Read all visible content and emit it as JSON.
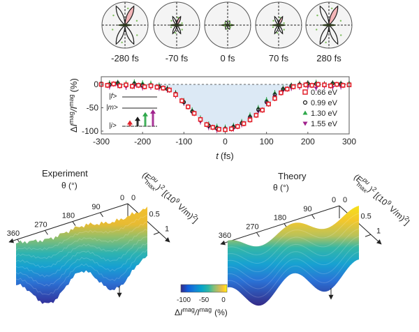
{
  "chart_data": [
    {
      "id": "polar_panels",
      "type": "polar",
      "description": "Polar plots of magnetic signal vs polarization angle at selected pump-probe delays",
      "panels": [
        {
          "label": "-280 fs",
          "lobe_major": 1.0,
          "lobe_minor": 0.95,
          "tilt_deg": 25,
          "shaded_lobe": 1.0
        },
        {
          "label": "-70 fs",
          "lobe_major": 0.45,
          "lobe_minor": 0.45,
          "tilt_deg": 25,
          "shaded_lobe": 0.45
        },
        {
          "label": "0 fs",
          "lobe_major": 0.22,
          "lobe_minor": 0.22,
          "tilt_deg": 25,
          "shaded_lobe": 0.0
        },
        {
          "label": "70 fs",
          "lobe_major": 0.45,
          "lobe_minor": 0.45,
          "tilt_deg": 25,
          "shaded_lobe": 0.45
        },
        {
          "label": "280 fs",
          "lobe_major": 1.0,
          "lobe_minor": 0.95,
          "tilt_deg": 25,
          "shaded_lobe": 1.0
        }
      ],
      "colors": {
        "outline": "#1a1a1a",
        "shade": "#f4b6b9",
        "data_points": "#7fbf5f",
        "frame_fill": "#f4f4f4"
      }
    },
    {
      "id": "time_trace",
      "type": "scatter",
      "title": "",
      "xlabel": "t (fs)",
      "ylabel": "ΔI mag / I mag (%)",
      "ylabel_parts": {
        "prefix": "Δ",
        "i1": "I",
        "sup1": "mag",
        "sep": "/",
        "i2": "I",
        "sup2": "mag",
        "unit": "(%)"
      },
      "xlim": [
        -300,
        300
      ],
      "ylim": [
        -105,
        8
      ],
      "xticks": [
        -300,
        -200,
        -100,
        0,
        100,
        200,
        300
      ],
      "yticks": [
        0,
        -50,
        -100
      ],
      "grid": false,
      "baseline": 0,
      "shaded_region": {
        "from": -300,
        "to": 300,
        "fill": "#dce9f5",
        "description": "area between baseline 0 and dip"
      },
      "legend_placement": "bottom-right",
      "series": [
        {
          "name": "0.66 eV",
          "marker": "square",
          "color": "#e2212b",
          "x": [
            -300,
            -285,
            -270,
            -255,
            -240,
            -225,
            -210,
            -195,
            -180,
            -165,
            -150,
            -135,
            -120,
            -105,
            -90,
            -75,
            -60,
            -45,
            -30,
            -15,
            0,
            15,
            30,
            45,
            60,
            75,
            90,
            105,
            120,
            135,
            150,
            165,
            180,
            195,
            210,
            225,
            240,
            255,
            270,
            285,
            300
          ],
          "y": [
            0,
            -2,
            1,
            -3,
            -1,
            -4,
            -2,
            -5,
            -3,
            -6,
            -8,
            -12,
            -22,
            -35,
            -48,
            -62,
            -75,
            -86,
            -92,
            -96,
            -97,
            -95,
            -90,
            -84,
            -76,
            -66,
            -55,
            -42,
            -30,
            -18,
            -10,
            -5,
            -3,
            -1,
            -2,
            0,
            -1,
            -3,
            0,
            -2,
            -1
          ]
        },
        {
          "name": "0.99 eV",
          "marker": "circle",
          "color": "#1a1a1a",
          "x": [
            -300,
            -280,
            -260,
            -240,
            -220,
            -200,
            -180,
            -160,
            -140,
            -120,
            -100,
            -80,
            -60,
            -40,
            -20,
            0,
            20,
            40,
            60,
            80,
            100,
            120,
            140,
            160,
            180,
            200,
            220,
            240,
            260,
            280,
            300
          ],
          "y": [
            2,
            0,
            3,
            -1,
            1,
            -2,
            -3,
            -5,
            -10,
            -20,
            -38,
            -58,
            -76,
            -88,
            -94,
            -95,
            -91,
            -83,
            -70,
            -54,
            -38,
            -22,
            -10,
            -3,
            0,
            2,
            1,
            0,
            2,
            1,
            0
          ]
        },
        {
          "name": "1.30 eV",
          "marker": "triangle-up",
          "color": "#2ea84a",
          "x": [
            -300,
            -280,
            -260,
            -240,
            -220,
            -200,
            -180,
            -160,
            -140,
            -120,
            -100,
            -80,
            -60,
            -40,
            -20,
            0,
            20,
            40,
            60,
            80,
            100,
            120,
            140,
            160,
            180,
            200,
            220,
            240,
            260,
            280,
            300
          ],
          "y": [
            1,
            3,
            4,
            2,
            5,
            3,
            2,
            -2,
            -8,
            -18,
            -35,
            -55,
            -72,
            -85,
            -90,
            -92,
            -88,
            -80,
            -66,
            -50,
            -33,
            -18,
            -8,
            -2,
            2,
            3,
            4,
            1,
            3,
            2,
            4
          ]
        },
        {
          "name": "1.55 eV",
          "marker": "triangle-down",
          "color": "#a0218c",
          "x": [
            -300,
            -280,
            -260,
            -240,
            -220,
            -200,
            -180,
            -160,
            -140,
            -120,
            -100,
            -80,
            -60,
            -40,
            -20,
            0,
            20,
            40,
            60,
            80,
            100,
            120,
            140,
            160,
            180,
            200,
            220,
            240,
            260,
            280,
            300
          ],
          "y": [
            -3,
            -5,
            -2,
            -6,
            -4,
            -7,
            -6,
            -8,
            -12,
            -24,
            -40,
            -60,
            -80,
            -92,
            -98,
            -99,
            -95,
            -86,
            -72,
            -58,
            -40,
            -25,
            -14,
            -8,
            -6,
            -5,
            -8,
            -4,
            -6,
            -5,
            -3
          ]
        }
      ],
      "inset": {
        "levels": [
          "|f>",
          "|m>",
          "|i>"
        ],
        "arrows": [
          {
            "color": "#e2212b",
            "height": 0.25
          },
          {
            "color": "#1a1a1a",
            "height": 0.45
          },
          {
            "color": "#2ea84a",
            "height": 0.7
          },
          {
            "color": "#a0218c",
            "height": 0.85
          }
        ]
      }
    },
    {
      "id": "surface_experiment",
      "type": "surface3d",
      "title": "Experiment",
      "x_axis": {
        "label": "θ (°)",
        "ticks": [
          0,
          90,
          180,
          270,
          360
        ]
      },
      "y_axis": {
        "label": "(E_max^pu)^2 [(10^9 V/m)^2]",
        "ticks": [
          0,
          0.5,
          1
        ]
      },
      "z_axis": {
        "label": "ΔI mag / I mag (%)",
        "range": [
          -100,
          0
        ]
      },
      "shape": "two-dip (cos 2θ) surface with noisy edges; z decreases with increasing field"
    },
    {
      "id": "surface_theory",
      "type": "surface3d",
      "title": "Theory",
      "x_axis": {
        "label": "θ (°)",
        "ticks": [
          0,
          90,
          180,
          270,
          360
        ]
      },
      "y_axis": {
        "label": "(E_max^pu)^2 [(10^9 V/m)^2]",
        "ticks": [
          0,
          0.5,
          1
        ]
      },
      "z_axis": {
        "label": "ΔI mag / I mag (%)",
        "range": [
          -100,
          0
        ]
      },
      "shape": "smooth two-dip (cos 2θ) surface; z decreases with increasing field"
    },
    {
      "id": "colorbar",
      "type": "colorbar",
      "colormap": "parula",
      "range": [
        -100,
        0
      ],
      "ticks": [
        -100,
        -50,
        0
      ],
      "label_parts": {
        "prefix": "Δ",
        "i1": "I",
        "sup1": "mag",
        "sep": "/",
        "i2": "I",
        "sup2": "mag",
        "unit": "(%)"
      },
      "stops": [
        "#352a87",
        "#0f5cdd",
        "#1481d6",
        "#06a4ca",
        "#2eb7a4",
        "#87bf77",
        "#d1bb59",
        "#fec832",
        "#f9fb0e"
      ]
    }
  ],
  "labels": {
    "polar": [
      "-280 fs",
      "-70 fs",
      "0 fs",
      "70 fs",
      "280 fs"
    ],
    "xticks": [
      "-300",
      "-200",
      "-100",
      "0",
      "100",
      "200",
      "300"
    ],
    "yticks": [
      "0",
      "-50",
      "-100"
    ],
    "xlabel_italic": "t",
    "xlabel_unit": "(fs)",
    "legend": [
      "0.66 eV",
      "0.99 eV",
      "1.30 eV",
      "1.55 eV"
    ],
    "inset_levels": [
      "|f>",
      "|m>",
      "|i>"
    ],
    "exp_title": "Experiment",
    "theory_title": "Theory",
    "theta_label": "θ (°)",
    "theta_ticks": [
      "0",
      "90",
      "180",
      "270",
      "360"
    ],
    "field_ticks": [
      "0",
      "0.5",
      "1"
    ],
    "field_label_a": "(E",
    "field_label_sup": "pu",
    "field_label_sub": "max",
    "field_label_b": ")",
    "field_label_sq": "2",
    "field_label_unit": "[(10",
    "field_label_9": "9",
    "field_label_unit2": " V/m)",
    "field_label_close": "]",
    "cbar_ticks": [
      "-100",
      "-50",
      "0"
    ],
    "ylabel_delta": "Δ",
    "ylabel_I": "I",
    "ylabel_mag": "mag",
    "ylabel_slash": "/",
    "ylabel_pct": "(%)"
  }
}
